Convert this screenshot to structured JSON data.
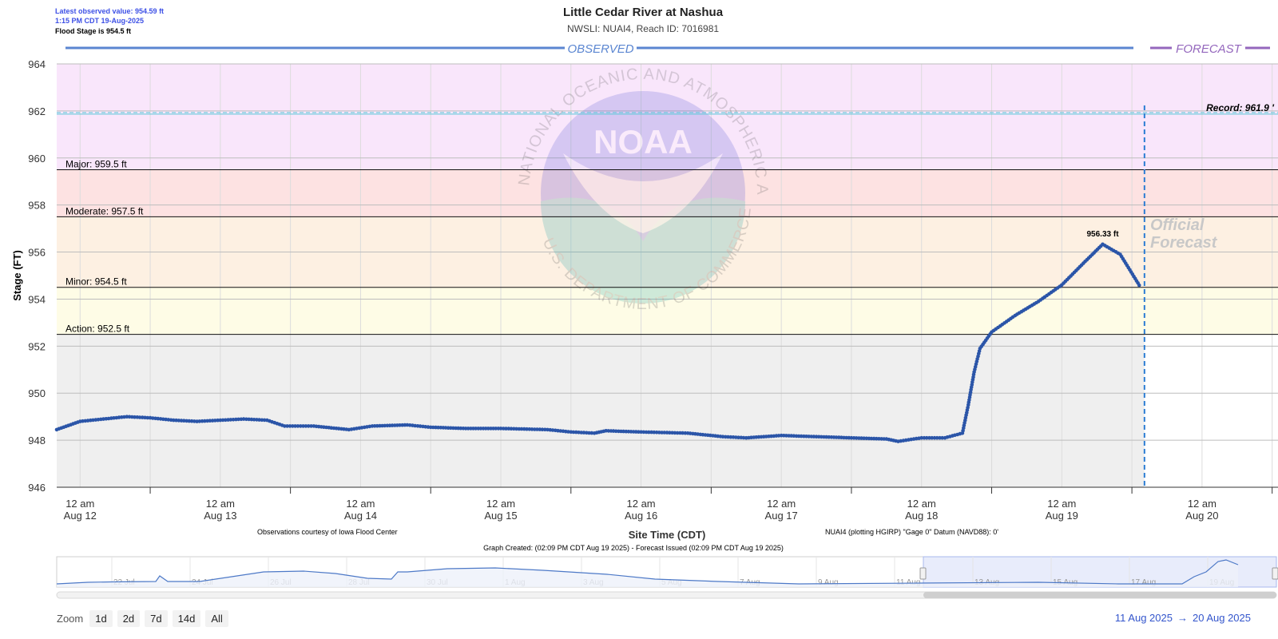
{
  "header": {
    "latest_observed": "Latest observed value: 954.59 ft",
    "latest_time": "1:15 PM CDT 19-Aug-2025",
    "flood_stage_note": "Flood Stage is 954.5 ft",
    "title": "Little Cedar River at Nashua",
    "subtitle": "NWSLI: NUAI4, Reach ID: 7016981"
  },
  "sections": {
    "observed": "OBSERVED",
    "forecast": "FORECAST"
  },
  "watermark": {
    "agency": "NOAA",
    "ring_top": "NATIONAL OCEANIC AND ATMOSPHERIC ADMINISTRATION",
    "ring_bottom": "U.S. DEPARTMENT OF COMMERCE",
    "official_forecast_line1": "Official",
    "official_forecast_line2": "Forecast"
  },
  "colors": {
    "record_band": "#f9e6fb",
    "major_band": "#fde2e2",
    "moderate_band": "#fdf0e2",
    "minor_band": "#fdf0e2",
    "action_band": "#fefce6",
    "below_band": "#efefef",
    "series": "#2b55a8",
    "observed_line": "#5b86d1",
    "forecast_line": "#9467bd",
    "now_line": "#2b7cd3",
    "navigator_fill": "#e8ecfb"
  },
  "footer": {
    "obs_credit": "Observations courtesy of Iowa Flood Center",
    "datum_note": "NUAI4 (plotting HGIRP) \"Gage 0\" Datum (NAVD88): 0'",
    "graph_created": "Graph Created: (02:09 PM CDT Aug 19 2025) - Forecast Issued (02:09 PM CDT Aug 19 2025)"
  },
  "navigator": {
    "labels": [
      "22 Jul",
      "24 Jul",
      "26 Jul",
      "28 Jul",
      "30 Jul",
      "1 Aug",
      "3 Aug",
      "5 Aug",
      "7 Aug",
      "9 Aug",
      "11 Aug",
      "13 Aug",
      "15 Aug",
      "17 Aug",
      "19 Aug"
    ]
  },
  "zoom": {
    "label": "Zoom",
    "buttons": [
      "1d",
      "2d",
      "7d",
      "14d",
      "All"
    ]
  },
  "range": {
    "from": "11 Aug 2025",
    "arrow": "→",
    "to": "20 Aug 2025"
  },
  "chart_data": {
    "type": "line",
    "title": "Little Cedar River at Nashua",
    "subtitle": "NWSLI: NUAI4, Reach ID: 7016981",
    "xlabel": "Site Time (CDT)",
    "ylabel": "Stage (FT)",
    "ylim": [
      946,
      964
    ],
    "yticks": [
      946,
      948,
      950,
      952,
      954,
      956,
      958,
      960,
      962,
      964
    ],
    "xlim": [
      "2025-08-11 20:00",
      "2025-08-20 13:00"
    ],
    "xticks": [
      {
        "time": "2025-08-12 00:00",
        "label1": "12 am",
        "label2": "Aug 12"
      },
      {
        "time": "2025-08-13 00:00",
        "label1": "12 am",
        "label2": "Aug 13"
      },
      {
        "time": "2025-08-14 00:00",
        "label1": "12 am",
        "label2": "Aug 14"
      },
      {
        "time": "2025-08-15 00:00",
        "label1": "12 am",
        "label2": "Aug 15"
      },
      {
        "time": "2025-08-16 00:00",
        "label1": "12 am",
        "label2": "Aug 16"
      },
      {
        "time": "2025-08-17 00:00",
        "label1": "12 am",
        "label2": "Aug 17"
      },
      {
        "time": "2025-08-18 00:00",
        "label1": "12 am",
        "label2": "Aug 18"
      },
      {
        "time": "2025-08-19 00:00",
        "label1": "12 am",
        "label2": "Aug 19"
      },
      {
        "time": "2025-08-20 00:00",
        "label1": "12 am",
        "label2": "Aug 20"
      }
    ],
    "thresholds": [
      {
        "name": "Action",
        "label": "Action: 952.5 ft",
        "value": 952.5
      },
      {
        "name": "Minor",
        "label": "Minor: 954.5 ft",
        "value": 954.5
      },
      {
        "name": "Moderate",
        "label": "Moderate: 957.5 ft",
        "value": 957.5
      },
      {
        "name": "Major",
        "label": "Major: 959.5 ft",
        "value": 959.5
      }
    ],
    "record": {
      "label": "Record: 961.9 '",
      "value": 961.9
    },
    "peak_annotation": {
      "time": "2025-08-19 07:00",
      "value": 956.33,
      "label": "956.33 ft"
    },
    "forecast_issued_time": "2025-08-19 14:09",
    "series": [
      {
        "name": "Observed",
        "points": [
          [
            "2025-08-11 20:00",
            948.45
          ],
          [
            "2025-08-12 00:00",
            948.8
          ],
          [
            "2025-08-12 04:00",
            948.9
          ],
          [
            "2025-08-12 08:00",
            949.0
          ],
          [
            "2025-08-12 12:00",
            948.95
          ],
          [
            "2025-08-12 16:00",
            948.85
          ],
          [
            "2025-08-12 20:00",
            948.8
          ],
          [
            "2025-08-13 00:00",
            948.85
          ],
          [
            "2025-08-13 04:00",
            948.9
          ],
          [
            "2025-08-13 08:00",
            948.85
          ],
          [
            "2025-08-13 11:00",
            948.6
          ],
          [
            "2025-08-13 16:00",
            948.6
          ],
          [
            "2025-08-13 22:00",
            948.45
          ],
          [
            "2025-08-14 02:00",
            948.6
          ],
          [
            "2025-08-14 08:00",
            948.65
          ],
          [
            "2025-08-14 12:00",
            948.55
          ],
          [
            "2025-08-14 18:00",
            948.5
          ],
          [
            "2025-08-15 00:00",
            948.5
          ],
          [
            "2025-08-15 08:00",
            948.45
          ],
          [
            "2025-08-15 12:00",
            948.35
          ],
          [
            "2025-08-15 16:00",
            948.3
          ],
          [
            "2025-08-15 18:00",
            948.4
          ],
          [
            "2025-08-16 00:00",
            948.35
          ],
          [
            "2025-08-16 08:00",
            948.3
          ],
          [
            "2025-08-16 14:00",
            948.15
          ],
          [
            "2025-08-16 18:00",
            948.1
          ],
          [
            "2025-08-17 00:00",
            948.2
          ],
          [
            "2025-08-17 06:00",
            948.15
          ],
          [
            "2025-08-17 12:00",
            948.1
          ],
          [
            "2025-08-17 18:00",
            948.05
          ],
          [
            "2025-08-17 20:00",
            947.95
          ],
          [
            "2025-08-18 00:00",
            948.1
          ],
          [
            "2025-08-18 04:00",
            948.1
          ],
          [
            "2025-08-18 07:00",
            948.3
          ],
          [
            "2025-08-18 08:00",
            949.5
          ],
          [
            "2025-08-18 09:00",
            950.9
          ],
          [
            "2025-08-18 10:00",
            951.9
          ],
          [
            "2025-08-18 12:00",
            952.6
          ],
          [
            "2025-08-18 16:00",
            953.3
          ],
          [
            "2025-08-18 20:00",
            953.9
          ],
          [
            "2025-08-19 00:00",
            954.6
          ],
          [
            "2025-08-19 04:00",
            955.6
          ],
          [
            "2025-08-19 07:00",
            956.33
          ],
          [
            "2025-08-19 10:00",
            955.9
          ],
          [
            "2025-08-19 13:15",
            954.59
          ]
        ]
      }
    ]
  }
}
